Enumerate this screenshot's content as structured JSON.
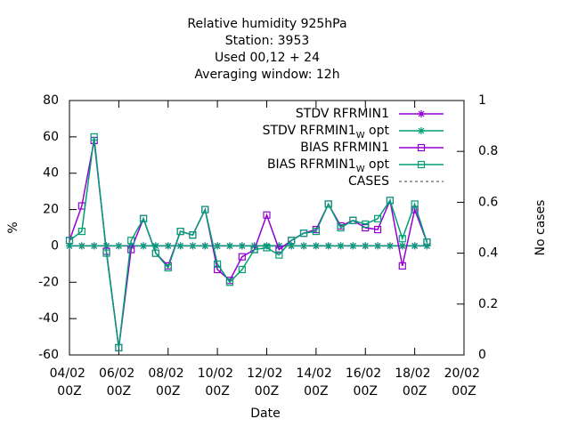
{
  "chart_data": {
    "type": "line",
    "title": [
      "Relative humidity 925hPa",
      "Station:      3953",
      "Used  00,12  + 24",
      "Averaging window: 12h"
    ],
    "xlabel": "Date",
    "ylabel": "%",
    "y2label": "No cases",
    "x": [
      "04/02 00Z",
      "04/02 12Z",
      "05/02 00Z",
      "05/02 12Z",
      "06/02 00Z",
      "06/02 12Z",
      "07/02 00Z",
      "07/02 12Z",
      "08/02 00Z",
      "08/02 12Z",
      "09/02 00Z",
      "09/02 12Z",
      "10/02 00Z",
      "10/02 12Z",
      "11/02 00Z",
      "11/02 12Z",
      "12/02 00Z",
      "12/02 12Z",
      "13/02 00Z",
      "13/02 12Z",
      "14/02 00Z",
      "14/02 12Z",
      "15/02 00Z",
      "15/02 12Z",
      "16/02 00Z",
      "16/02 12Z",
      "17/02 00Z",
      "17/02 12Z",
      "18/02 00Z",
      "18/02 12Z"
    ],
    "xlim": [
      "04/02 00Z",
      "20/02 00Z"
    ],
    "xticks": [
      {
        "value": "04/02 00Z",
        "label": "04/02\n00Z"
      },
      {
        "value": "06/02 00Z",
        "label": "06/02\n00Z"
      },
      {
        "value": "08/02 00Z",
        "label": "08/02\n00Z"
      },
      {
        "value": "10/02 00Z",
        "label": "10/02\n00Z"
      },
      {
        "value": "12/02 00Z",
        "label": "12/02\n00Z"
      },
      {
        "value": "14/02 00Z",
        "label": "14/02\n00Z"
      },
      {
        "value": "16/02 00Z",
        "label": "16/02\n00Z"
      },
      {
        "value": "18/02 00Z",
        "label": "18/02\n00Z"
      },
      {
        "value": "20/02 00Z",
        "label": "20/02\n00Z"
      }
    ],
    "ylim": [
      -60,
      80
    ],
    "yticks": [
      -60,
      -40,
      -20,
      0,
      20,
      40,
      60,
      80
    ],
    "y2lim": [
      0,
      1
    ],
    "y2ticks": [
      0,
      0.2,
      0.4,
      0.6,
      0.8,
      1
    ],
    "legend": "top-right",
    "series": [
      {
        "name": "STDV RFRMIN1",
        "color": "#9400d3",
        "marker": "star",
        "values": [
          0,
          0,
          0,
          0,
          0,
          0,
          0,
          0,
          0,
          0,
          0,
          0,
          0,
          0,
          0,
          0,
          0,
          0,
          0,
          0,
          0,
          0,
          0,
          0,
          0,
          0,
          0,
          0,
          0,
          0
        ]
      },
      {
        "name": "STDV RFRMIN1_W opt",
        "color": "#009e73",
        "marker": "star",
        "values": [
          0,
          0,
          0,
          0,
          0,
          0,
          0,
          0,
          0,
          0,
          0,
          0,
          0,
          0,
          0,
          0,
          0,
          0,
          0,
          0,
          0,
          0,
          0,
          0,
          0,
          0,
          0,
          0,
          0,
          0
        ]
      },
      {
        "name": "BIAS RFRMIN1",
        "color": "#9400d3",
        "marker": "square",
        "values": [
          3,
          22,
          58,
          -3,
          -56,
          -2,
          15,
          -4,
          -11,
          8,
          6,
          20,
          -13,
          -19,
          -6,
          -2,
          17,
          -2,
          3,
          7,
          9,
          23,
          11,
          14,
          10,
          9,
          25,
          -11,
          20,
          2
        ]
      },
      {
        "name": "BIAS RFRMIN1_W opt",
        "color": "#009e73",
        "marker": "square",
        "values": [
          3,
          8,
          60,
          -4,
          -56,
          3,
          15,
          -4,
          -12,
          8,
          6,
          20,
          -10,
          -20,
          -13,
          -2,
          -1,
          -5,
          3,
          7,
          8,
          23,
          10,
          14,
          12,
          15,
          25,
          4,
          23,
          2
        ]
      },
      {
        "name": "CASES",
        "color": "#808080",
        "marker": "none",
        "dashed": true,
        "axis": "y2",
        "values": [
          null,
          null,
          null,
          null,
          null,
          null,
          null,
          null,
          null,
          null,
          null,
          null,
          null,
          null,
          null,
          null,
          null,
          null,
          null,
          null,
          null,
          null,
          null,
          null,
          null,
          null,
          null,
          null,
          null,
          null
        ]
      }
    ]
  }
}
